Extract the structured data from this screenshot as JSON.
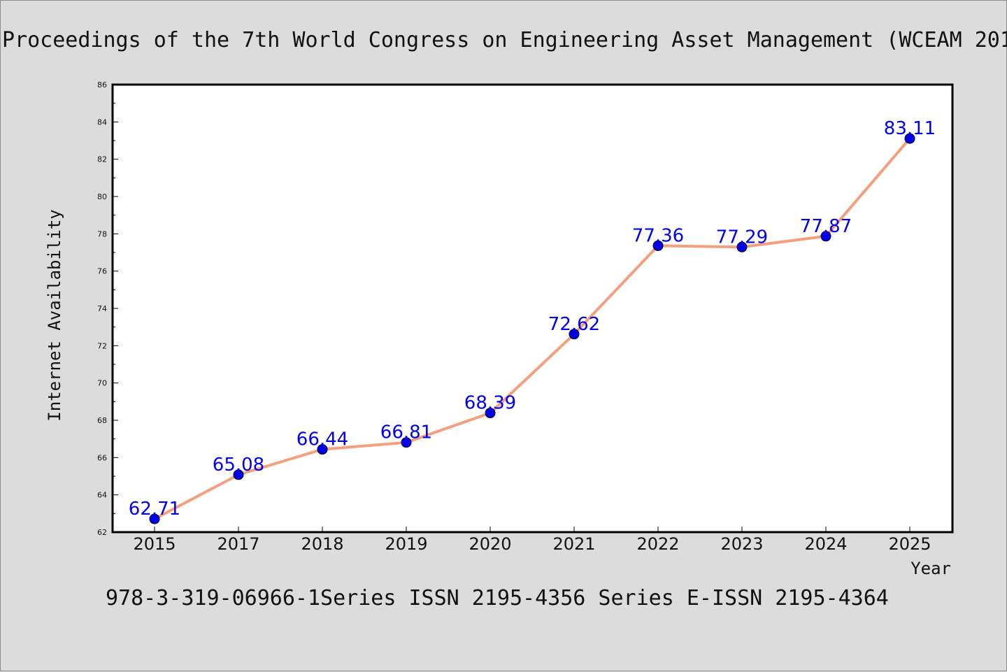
{
  "header": {
    "title": "Proceedings of the 7th World Congress on Engineering Asset Management (WCEAM 201"
  },
  "footer": {
    "text": "978-3-319-06966-1Series ISSN 2195-4356 Series E-ISSN 2195-4364"
  },
  "colors": {
    "background": "#dcdcdc",
    "plot_background": "#ffffff",
    "line": "#f4a07e",
    "marker": "#0000ee",
    "label": "#0000ee"
  },
  "chart_data": {
    "type": "line",
    "title": "",
    "xlabel": "Year",
    "ylabel": "Internet Availability",
    "categories": [
      "2015",
      "2017",
      "2018",
      "2019",
      "2020",
      "2021",
      "2022",
      "2023",
      "2024",
      "2025"
    ],
    "series": [
      {
        "values": [
          62.71,
          65.08,
          66.44,
          66.81,
          68.39,
          72.62,
          77.36,
          77.29,
          77.87,
          83.11
        ],
        "labels": [
          "62.71",
          "65.08",
          "66.44",
          "66.81",
          "68.39",
          "72.62",
          "77.36",
          "77.29",
          "77.87",
          "83.11"
        ]
      }
    ],
    "ylim": [
      62,
      86
    ],
    "yticks": [
      "62",
      "64",
      "66",
      "68",
      "70",
      "72",
      "74",
      "76",
      "78",
      "80",
      "82",
      "84",
      "86"
    ],
    "grid": false,
    "legend": "none"
  }
}
